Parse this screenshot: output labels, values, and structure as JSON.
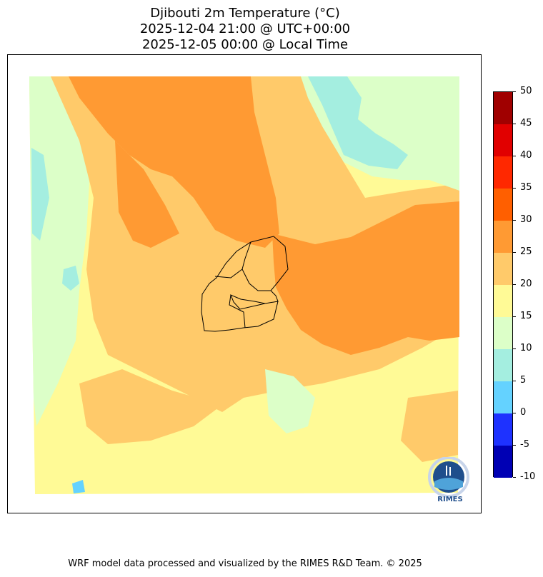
{
  "title": {
    "line1": "Djibouti 2m Temperature (°C)",
    "line2": "2025-12-04 21:00 @ UTC+00:00",
    "line3": "2025-12-05 00:00 @ Local Time"
  },
  "colorbar": {
    "levels": [
      "-10",
      "-5",
      "0",
      "5",
      "10",
      "15",
      "20",
      "25",
      "30",
      "35",
      "40",
      "45",
      "50"
    ],
    "colors": [
      "#0000b4",
      "#1e32ff",
      "#64d2ff",
      "#a4eee0",
      "#dcffc8",
      "#fffa96",
      "#ffca6a",
      "#ff9a33",
      "#ff5f00",
      "#ff2800",
      "#e10000",
      "#a00000"
    ]
  },
  "logo": {
    "text": "RIMES"
  },
  "footer": {
    "text": "WRF model data processed and visualized by the RIMES R&D Team. © 2025"
  }
}
